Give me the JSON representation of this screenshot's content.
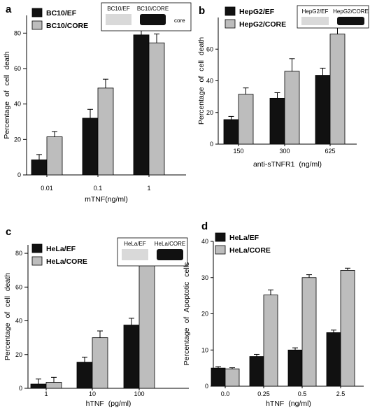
{
  "chart_data": [
    {
      "panel": "a",
      "type": "bar",
      "categories": [
        "0.01",
        "0.1",
        "1"
      ],
      "series": [
        {
          "name": "BC10/EF",
          "values": [
            8.5,
            32,
            79
          ],
          "errors": [
            3,
            5,
            5
          ],
          "color": "#111111"
        },
        {
          "name": "BC10/CORE",
          "values": [
            21.5,
            49,
            74.5
          ],
          "errors": [
            3,
            5,
            5
          ],
          "color": "#bdbdbd"
        }
      ],
      "xlabel": "mTNF(ng/ml)",
      "ylabel": "Percentage of cell death",
      "ylim": [
        0,
        90
      ],
      "yticks": [
        0,
        20,
        40,
        60,
        80
      ],
      "blot": {
        "lane_labels": [
          "BC10/EF",
          "BC10/CORE"
        ],
        "band_label": "core",
        "lane_intensity": [
          0,
          1
        ]
      }
    },
    {
      "panel": "b",
      "type": "bar",
      "categories": [
        "150",
        "300",
        "625"
      ],
      "series": [
        {
          "name": "HepG2/EF",
          "values": [
            15.5,
            29,
            43.5
          ],
          "errors": [
            2,
            3.5,
            4.5
          ],
          "color": "#111111"
        },
        {
          "name": "HepG2/CORE",
          "values": [
            31.5,
            46,
            69.5
          ],
          "errors": [
            4,
            8,
            4
          ],
          "color": "#bdbdbd"
        }
      ],
      "xlabel": "anti-sTNFR1 (ng/ml)",
      "ylabel": "Percentage of cell death",
      "ylim": [
        0,
        80
      ],
      "yticks": [
        0,
        20,
        40,
        60
      ],
      "blot": {
        "lane_labels": [
          "HepG2/EF",
          "HepG2/CORE"
        ],
        "lane_intensity": [
          0,
          1
        ]
      }
    },
    {
      "panel": "c",
      "type": "bar",
      "categories": [
        "1",
        "10",
        "100"
      ],
      "series": [
        {
          "name": "HeLa/EF",
          "values": [
            2.5,
            15.5,
            37.5
          ],
          "errors": [
            3,
            3,
            4
          ],
          "color": "#111111"
        },
        {
          "name": "HeLa/CORE",
          "values": [
            3.5,
            30,
            73.5
          ],
          "errors": [
            3,
            4,
            4.5
          ],
          "color": "#bdbdbd"
        }
      ],
      "xlabel": "hTNF (pg/ml)",
      "ylabel": "Percentage of cell death",
      "ylim": [
        0,
        85
      ],
      "yticks": [
        0,
        20,
        40,
        60,
        80
      ],
      "blot": {
        "lane_labels": [
          "HeLa/EF",
          "HeLa/CORE"
        ],
        "lane_intensity": [
          0,
          1
        ]
      }
    },
    {
      "panel": "d",
      "type": "bar",
      "categories": [
        "0.0",
        "0.25",
        "0.5",
        "2.5"
      ],
      "series": [
        {
          "name": "HeLa/EF",
          "values": [
            5,
            8.2,
            10,
            14.8
          ],
          "errors": [
            0.4,
            0.6,
            0.6,
            0.7
          ],
          "color": "#111111"
        },
        {
          "name": "HeLa/CORE",
          "values": [
            4.8,
            25.2,
            30,
            32
          ],
          "errors": [
            0.3,
            1.4,
            0.8,
            0.6
          ],
          "color": "#bdbdbd"
        }
      ],
      "xlabel": "hTNF (ng/ml)",
      "ylabel": "Percentage of Apoptotic cells",
      "ylim": [
        0,
        40
      ],
      "yticks": [
        0,
        10,
        20,
        30,
        40
      ]
    }
  ]
}
